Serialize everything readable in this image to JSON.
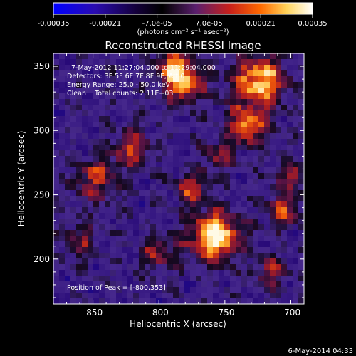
{
  "colorbar": {
    "tick_labels": [
      "-0.00035",
      "-0.00021",
      "-7.0e-05",
      "7.0e-05",
      "0.00021",
      "0.00035"
    ],
    "tick_values": [
      -0.00035,
      -0.00021,
      -7e-05,
      7e-05,
      0.00021,
      0.00035
    ],
    "range": [
      -0.00035,
      0.00035
    ],
    "unit_label": "(photons cm⁻² s⁻¹ asec⁻²)",
    "colors": [
      "#0000ff",
      "#3b0090",
      "#000000",
      "#5a2a78",
      "#c8201a",
      "#ff6a00",
      "#ffd35a",
      "#ffffff"
    ]
  },
  "plot": {
    "title": "Reconstructed RHESSI Image",
    "xlabel": "Heliocentric X (arcsec)",
    "ylabel": "Heliocentric Y (arcsec)",
    "info_lines": [
      "7-May-2012 11:27:04.000 to 11:29:04.000",
      "Detectors: 3F 5F 6F 7F 8F 9F, Att 0",
      "Energy Range: 25.0 - 50.0 keV",
      "Clean    Total counts: 2.11E+03"
    ],
    "peak_label": "Position of Peak = [-800,353]",
    "xlim": [
      -880,
      -690
    ],
    "ylim": [
      165,
      360
    ]
  },
  "chart_data": {
    "type": "heatmap",
    "title": "Reconstructed RHESSI Image",
    "xlabel": "Heliocentric X (arcsec)",
    "ylabel": "Heliocentric Y (arcsec)",
    "x_ticks": [
      -850,
      -800,
      -750,
      -700
    ],
    "x_tick_labels": [
      "-850",
      "-800",
      "-750",
      "-700"
    ],
    "y_ticks": [
      200,
      250,
      300,
      350
    ],
    "y_tick_labels": [
      "200",
      "250",
      "300",
      "350"
    ],
    "xlim": [
      -880,
      -690
    ],
    "ylim": [
      165,
      360
    ],
    "peak": [
      -800,
      353
    ],
    "sources": [
      {
        "x": -757,
        "y": 218,
        "strength": 1.0,
        "spread": 13
      },
      {
        "x": -724,
        "y": 338,
        "strength": 0.85,
        "spread": 14
      },
      {
        "x": -781,
        "y": 336,
        "strength": 0.7,
        "spread": 11
      },
      {
        "x": -733,
        "y": 304,
        "strength": 0.75,
        "spread": 10
      },
      {
        "x": -848,
        "y": 262,
        "strength": 0.5,
        "spread": 12
      },
      {
        "x": -820,
        "y": 286,
        "strength": 0.55,
        "spread": 10
      },
      {
        "x": -775,
        "y": 255,
        "strength": 0.5,
        "spread": 9
      },
      {
        "x": -705,
        "y": 238,
        "strength": 0.55,
        "spread": 9
      },
      {
        "x": -800,
        "y": 205,
        "strength": 0.45,
        "spread": 10
      },
      {
        "x": -715,
        "y": 190,
        "strength": 0.4,
        "spread": 9
      },
      {
        "x": -860,
        "y": 215,
        "strength": 0.35,
        "spread": 10
      },
      {
        "x": -700,
        "y": 265,
        "strength": 0.45,
        "spread": 9
      },
      {
        "x": -755,
        "y": 280,
        "strength": 0.4,
        "spread": 9
      },
      {
        "x": -790,
        "y": 350,
        "strength": 0.6,
        "spread": 9
      }
    ]
  },
  "footer": {
    "timestamp": "6-May-2014 04:33"
  }
}
